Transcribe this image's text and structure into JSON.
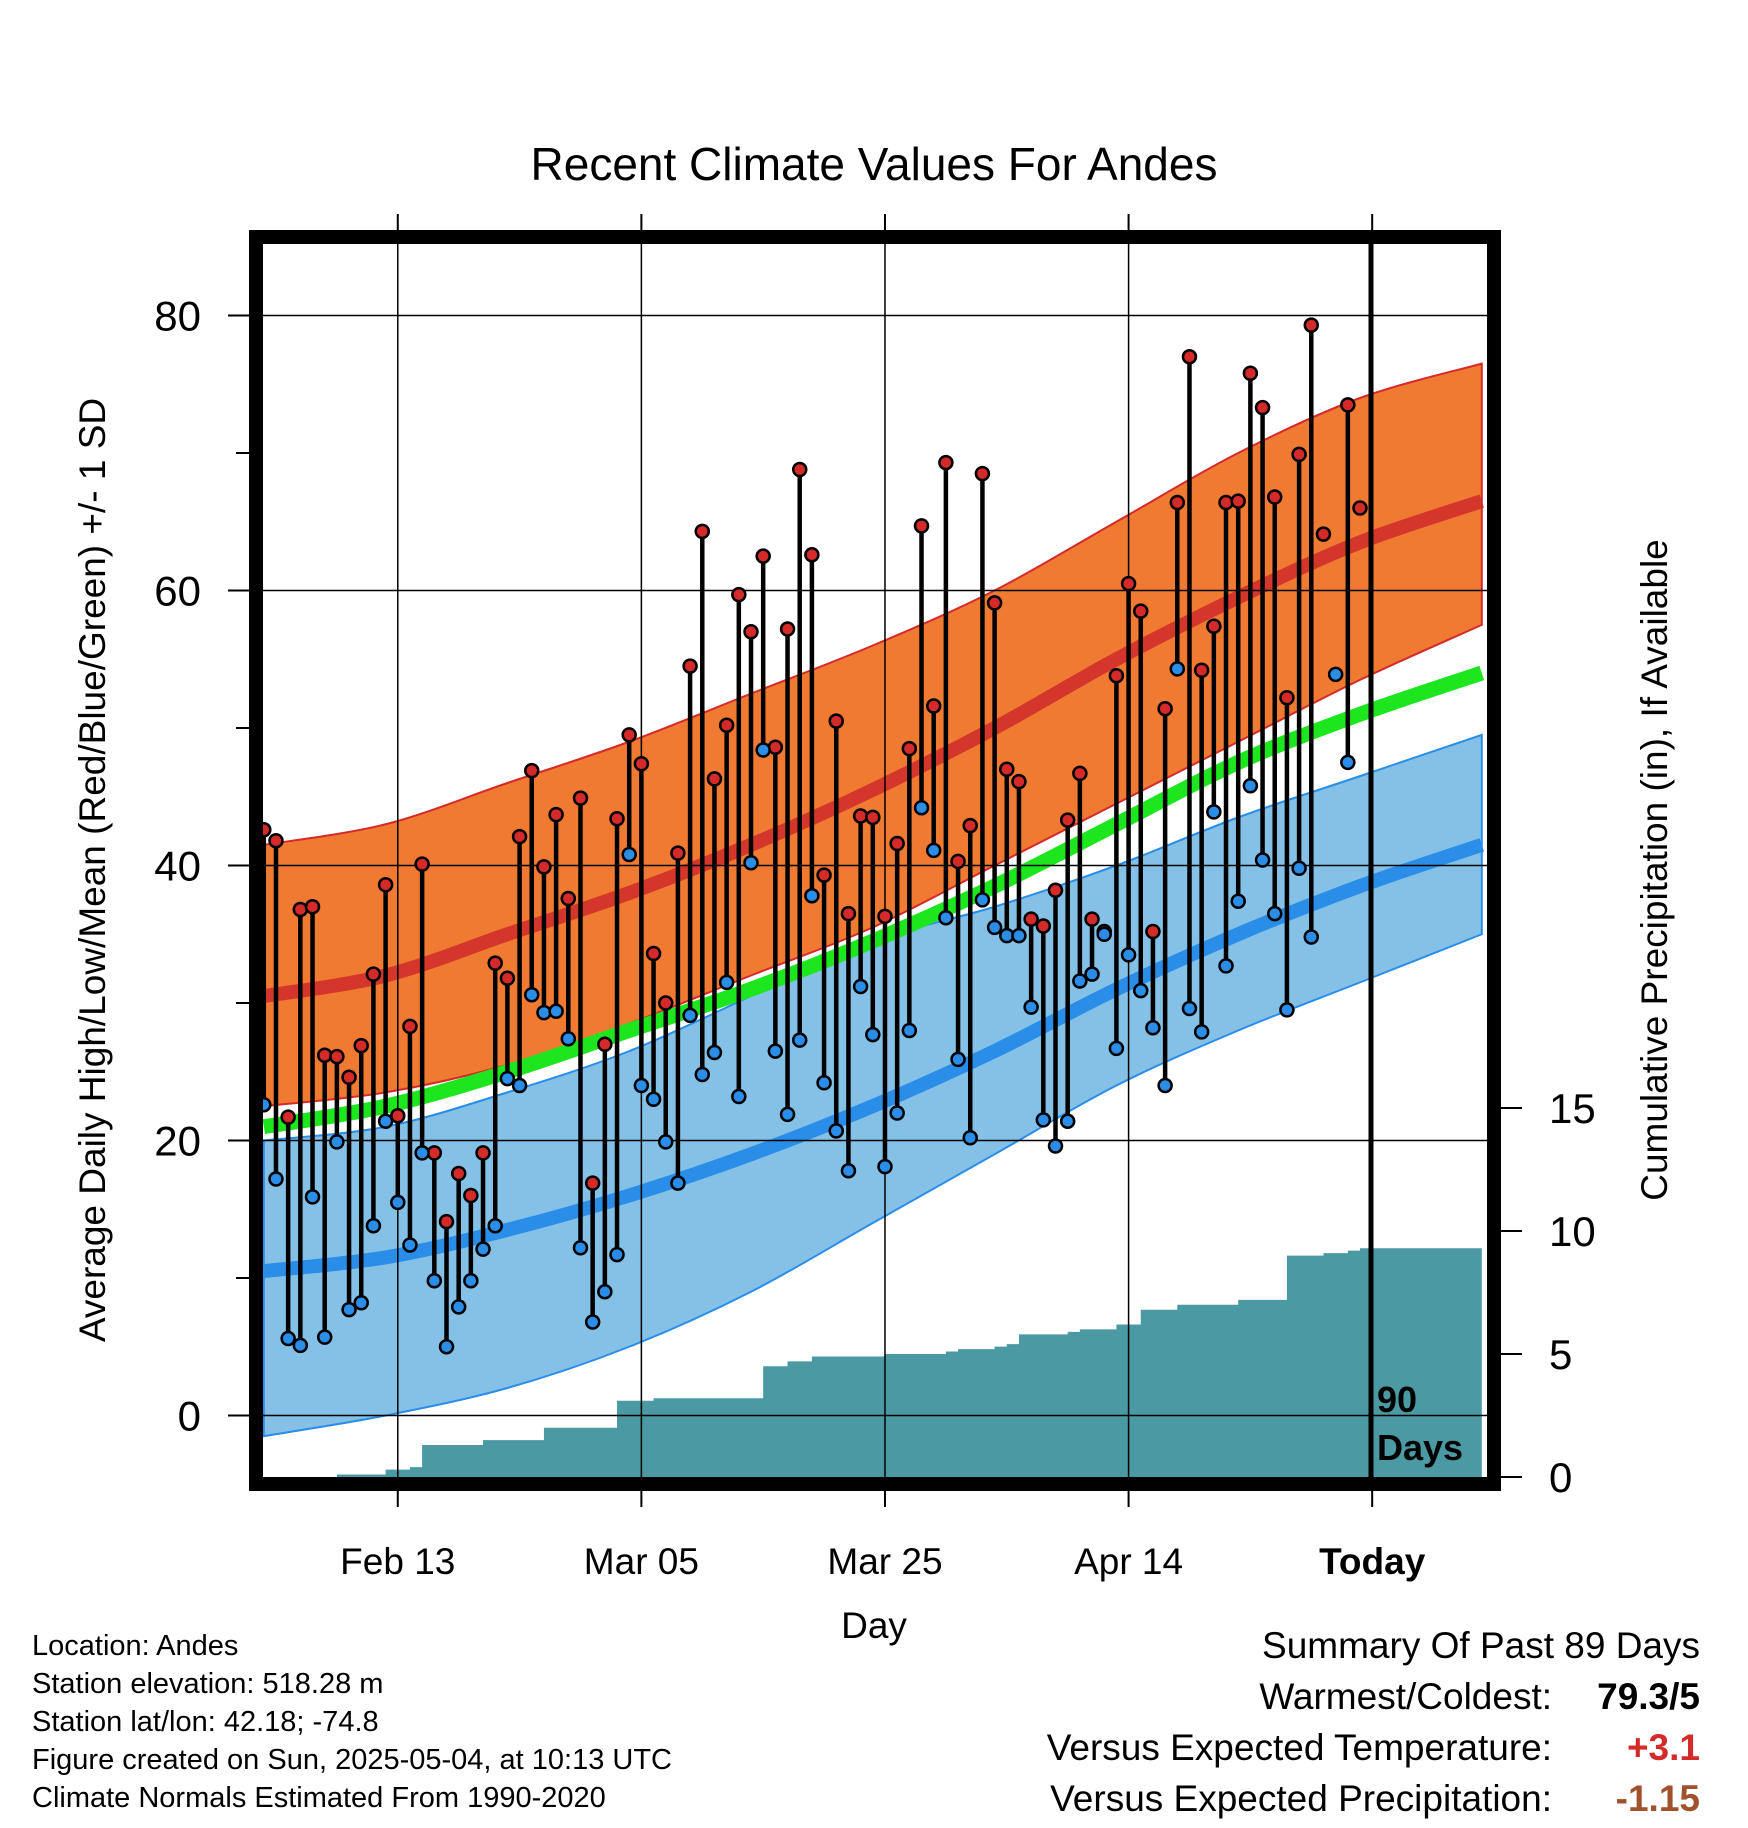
{
  "chart_data": {
    "type": "line",
    "title": "Recent Climate Values For Andes",
    "xlabel": "Day",
    "ylabel": "Average Daily High/Low/Mean (Red/Blue/Green) +/- 1 SD",
    "ylabel_right": "Cumulative Precipitation (in), If Available",
    "x_tick_labels": [
      "Feb 13",
      "Mar 05",
      "Mar 25",
      "Apr 14",
      "Today"
    ],
    "x_tick_days": [
      11,
      31,
      51,
      71,
      91
    ],
    "ylim": [
      -5,
      86
    ],
    "yticks": [
      0,
      20,
      40,
      60,
      80
    ],
    "y2lim": [
      0,
      100
    ],
    "y2ticks": [
      0,
      5,
      10,
      15
    ],
    "today_marker_label": [
      "90",
      "Days"
    ],
    "normals": {
      "days": [
        0,
        10,
        20,
        30,
        40,
        50,
        60,
        70,
        80,
        90,
        100
      ],
      "high_mean": [
        30.5,
        32.0,
        35.0,
        38.0,
        41.5,
        45.5,
        50.0,
        55.0,
        59.5,
        63.5,
        66.5
      ],
      "high_upper": [
        41.5,
        43.0,
        46.0,
        49.0,
        52.5,
        56.0,
        60.0,
        65.0,
        70.0,
        74.0,
        76.5
      ],
      "high_lower": [
        22.5,
        23.5,
        25.5,
        28.5,
        32.0,
        35.5,
        40.0,
        44.5,
        49.0,
        53.5,
        57.5
      ],
      "avg_mean": [
        21.0,
        22.5,
        25.0,
        28.0,
        31.0,
        34.5,
        38.5,
        43.0,
        47.5,
        51.0,
        54.0
      ],
      "low_mean": [
        10.5,
        11.5,
        13.5,
        16.0,
        19.0,
        22.5,
        26.5,
        31.0,
        35.0,
        38.5,
        41.5
      ],
      "low_upper": [
        20.0,
        21.0,
        23.5,
        26.5,
        30.5,
        34.5,
        37.0,
        40.0,
        43.5,
        46.5,
        49.5
      ],
      "low_lower": [
        -1.5,
        0.0,
        2.0,
        5.0,
        9.0,
        14.0,
        19.0,
        24.0,
        28.0,
        31.5,
        35.0
      ]
    },
    "series": [
      {
        "name": "High",
        "color": "#d42a2a",
        "values": [
          42.6,
          41.8,
          21.7,
          36.8,
          37.0,
          26.2,
          26.1,
          24.6,
          26.9,
          32.1,
          38.6,
          21.8,
          28.3,
          40.1,
          19.1,
          14.1,
          17.6,
          16.0,
          19.1,
          32.9,
          31.8,
          42.1,
          46.9,
          39.9,
          43.7,
          37.6,
          44.9,
          16.9,
          27.0,
          43.4,
          49.5,
          47.4,
          33.6,
          30.0,
          40.9,
          54.5,
          64.3,
          46.3,
          50.2,
          59.7,
          57.0,
          62.5,
          48.6,
          57.2,
          68.8,
          62.6,
          39.3,
          50.5,
          36.5,
          43.6,
          43.5,
          36.3,
          41.6,
          48.5,
          64.7,
          51.6,
          69.3,
          40.3,
          42.9,
          68.5,
          59.1,
          47.0,
          46.1,
          36.1,
          35.6,
          38.2,
          43.3,
          46.7,
          36.1,
          35.2,
          53.8,
          60.5,
          58.5,
          35.2,
          51.4,
          66.4,
          77.0,
          54.2,
          57.4,
          66.4,
          66.5,
          75.8,
          73.3,
          66.8,
          52.2,
          69.9,
          79.3,
          64.1,
          null,
          73.5,
          66.0
        ]
      },
      {
        "name": "Low",
        "color": "#2a8de8",
        "values": [
          22.6,
          17.2,
          5.6,
          5.1,
          15.9,
          5.7,
          19.9,
          7.7,
          8.2,
          13.8,
          21.4,
          15.5,
          12.4,
          19.1,
          9.8,
          5.0,
          7.9,
          9.8,
          12.1,
          13.8,
          24.5,
          24.0,
          30.6,
          29.3,
          29.4,
          27.4,
          12.2,
          6.8,
          9.0,
          11.7,
          40.8,
          24.0,
          23.0,
          19.9,
          16.9,
          29.1,
          24.8,
          26.4,
          31.5,
          23.2,
          40.2,
          48.4,
          26.5,
          21.9,
          27.3,
          37.8,
          24.2,
          20.7,
          17.8,
          31.2,
          27.7,
          18.1,
          22.0,
          28.0,
          44.2,
          41.1,
          36.2,
          25.9,
          20.2,
          37.5,
          35.5,
          34.9,
          34.9,
          29.7,
          21.5,
          19.6,
          21.4,
          31.6,
          32.1,
          35.0,
          26.7,
          33.5,
          30.9,
          28.2,
          24.0,
          54.3,
          29.6,
          27.9,
          43.9,
          32.7,
          37.4,
          45.8,
          40.4,
          36.5,
          29.5,
          39.8,
          34.8,
          null,
          53.9,
          47.5,
          null
        ]
      }
    ],
    "precipitation_cumulative": {
      "days": [
        0,
        5,
        6,
        10,
        12,
        13,
        18,
        23,
        26,
        29,
        31,
        32,
        40,
        41,
        43,
        45,
        50,
        51,
        54,
        56,
        57,
        60,
        61,
        62,
        66,
        67,
        70,
        72,
        75,
        80,
        81,
        84,
        87,
        89,
        90,
        100
      ],
      "values": [
        0.0,
        0.0,
        0.1,
        0.3,
        0.4,
        1.3,
        1.5,
        2.0,
        2.0,
        3.1,
        3.1,
        3.2,
        3.2,
        4.5,
        4.7,
        4.9,
        4.9,
        5.0,
        5.0,
        5.1,
        5.2,
        5.3,
        5.4,
        5.8,
        5.9,
        6.0,
        6.2,
        6.8,
        7.0,
        7.2,
        7.2,
        9.0,
        9.1,
        9.2,
        9.3,
        9.3
      ]
    },
    "grid": true
  },
  "location_info": {
    "location": "Location: Andes",
    "elevation": "Station elevation: 518.28 m",
    "latlon": "Station lat/lon: 42.18; -74.8",
    "created": "Figure created on Sun, 2025-05-04, at 10:13 UTC",
    "normals": "Climate Normals Estimated From 1990-2020"
  },
  "summary": {
    "heading": "Summary Of Past 89 Days",
    "warm_cold_label": "Warmest/Coldest:",
    "warm_cold_value": "79.3/5",
    "temp_label": "Versus Expected Temperature:",
    "temp_value": "+3.1",
    "temp_color": "#d42a2a",
    "precip_label": "Versus Expected Precipitation:",
    "precip_value": "-1.15",
    "precip_color": "#a0522d"
  },
  "colors": {
    "high_band": "#f07a32",
    "high_line": "#cf2a2a",
    "low_band": "#85c1e6",
    "low_line": "#2a8de8",
    "avg_line": "#1ee61e",
    "precip_fill": "#4a99a3"
  }
}
